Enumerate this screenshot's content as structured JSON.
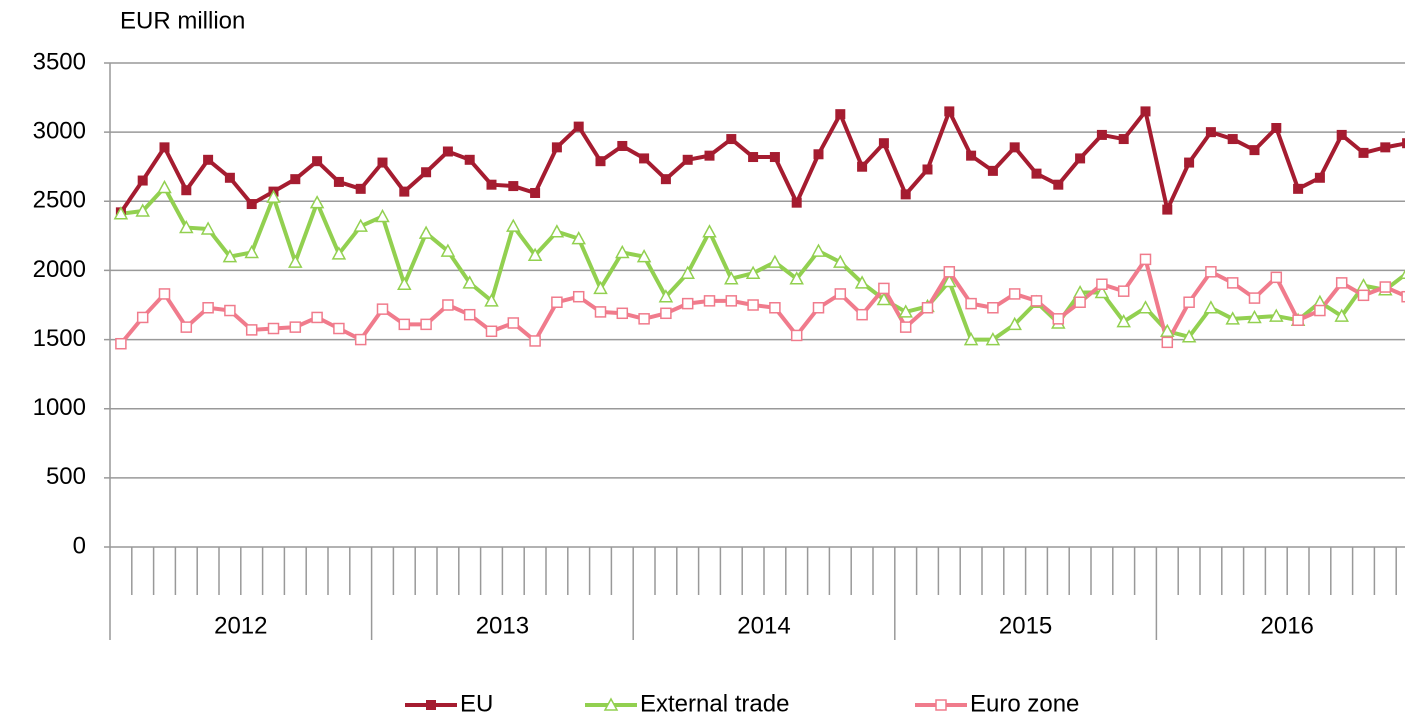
{
  "chart_data": {
    "type": "line",
    "ylabel": "EUR million",
    "categories": [
      null,
      null,
      null,
      null,
      null,
      null,
      null,
      null,
      null,
      null,
      null,
      null,
      null,
      null,
      null,
      null,
      null,
      null,
      null,
      null,
      null,
      null,
      null,
      null,
      null,
      null,
      null,
      null,
      null,
      null,
      null,
      null,
      null,
      null,
      null,
      null,
      null,
      null,
      null,
      null,
      null,
      null,
      null,
      null,
      null,
      null,
      null,
      null,
      null,
      null,
      null,
      null,
      null,
      null,
      null,
      null,
      null,
      null,
      null,
      null
    ],
    "years": [
      "2012",
      "2013",
      "2014",
      "2015",
      "2016"
    ],
    "ylim": [
      0,
      3500
    ],
    "yticks": [
      0,
      500,
      1000,
      1500,
      2000,
      2500,
      3000,
      3500
    ],
    "grid": true,
    "legend": "bottom",
    "series": [
      {
        "name": "EU",
        "color": "#a51c30",
        "marker": "square",
        "values": [
          2420,
          2650,
          2890,
          2580,
          2800,
          2670,
          2480,
          2570,
          2660,
          2790,
          2640,
          2590,
          2780,
          2570,
          2710,
          2860,
          2800,
          2620,
          2610,
          2560,
          2890,
          3040,
          2790,
          2900,
          2810,
          2660,
          2800,
          2830,
          2950,
          2820,
          2820,
          2490,
          2840,
          3130,
          2750,
          2920,
          2550,
          2730,
          3150,
          2830,
          2720,
          2890,
          2700,
          2620,
          2810,
          2980,
          2950,
          3150,
          2440,
          2780,
          3000,
          2950,
          2870,
          3030,
          2590,
          2670,
          2980,
          2850,
          2890,
          2920
        ]
      },
      {
        "name": "External trade",
        "color": "#92d050",
        "marker": "triangle",
        "values": [
          2410,
          2430,
          2600,
          2310,
          2300,
          2100,
          2130,
          2530,
          2060,
          2490,
          2120,
          2320,
          2390,
          1900,
          2270,
          2140,
          1910,
          1780,
          2320,
          2110,
          2280,
          2230,
          1870,
          2130,
          2100,
          1810,
          1980,
          2280,
          1940,
          1980,
          2060,
          1940,
          2140,
          2060,
          1910,
          1790,
          1700,
          1740,
          1920,
          1500,
          1500,
          1610,
          1770,
          1620,
          1840,
          1840,
          1630,
          1730,
          1560,
          1520,
          1730,
          1650,
          1660,
          1670,
          1640,
          1770,
          1670,
          1890,
          1860,
          1980
        ]
      },
      {
        "name": "Euro zone",
        "color": "#f07b8c",
        "marker": "square-open",
        "values": [
          1470,
          1660,
          1830,
          1590,
          1730,
          1710,
          1570,
          1580,
          1590,
          1660,
          1580,
          1500,
          1720,
          1610,
          1610,
          1750,
          1680,
          1560,
          1620,
          1490,
          1770,
          1810,
          1700,
          1690,
          1650,
          1690,
          1760,
          1780,
          1780,
          1750,
          1730,
          1530,
          1730,
          1830,
          1680,
          1870,
          1590,
          1730,
          1990,
          1760,
          1730,
          1830,
          1780,
          1650,
          1770,
          1900,
          1850,
          2080,
          1480,
          1770,
          1990,
          1910,
          1800,
          1950,
          1640,
          1710,
          1910,
          1820,
          1880,
          1810
        ]
      }
    ]
  }
}
